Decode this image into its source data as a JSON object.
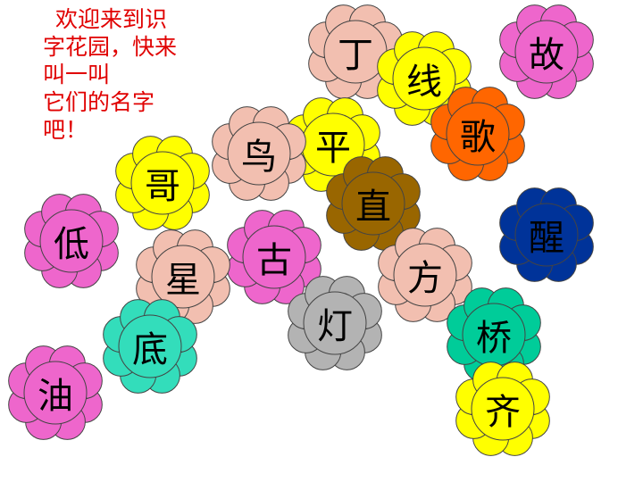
{
  "intro": {
    "lines": [
      "欢迎来到识",
      "字花园，快来",
      "叫一叫",
      "它们的名字",
      "吧！"
    ]
  },
  "flowers": [
    {
      "char": "丁",
      "color": "#f2bfb0"
    },
    {
      "char": "线",
      "color": "#ffff00"
    },
    {
      "char": "故",
      "color": "#ee66cc"
    },
    {
      "char": "歌",
      "color": "#ff6600"
    },
    {
      "char": "平",
      "color": "#ffff00"
    },
    {
      "char": "鸟",
      "color": "#f2bfb0"
    },
    {
      "char": "哥",
      "color": "#ffff00"
    },
    {
      "char": "直",
      "color": "#996600"
    },
    {
      "char": "醒",
      "color": "#003399"
    },
    {
      "char": "低",
      "color": "#ee66cc"
    },
    {
      "char": "古",
      "color": "#ee66cc"
    },
    {
      "char": "星",
      "color": "#f2bfb0"
    },
    {
      "char": "方",
      "color": "#f2bfb0"
    },
    {
      "char": "灯",
      "color": "#b3b3b3"
    },
    {
      "char": "底",
      "color": "#33ddbb"
    },
    {
      "char": "桥",
      "color": "#00cc99"
    },
    {
      "char": "油",
      "color": "#ee66cc"
    },
    {
      "char": "齐",
      "color": "#ffff00"
    }
  ]
}
